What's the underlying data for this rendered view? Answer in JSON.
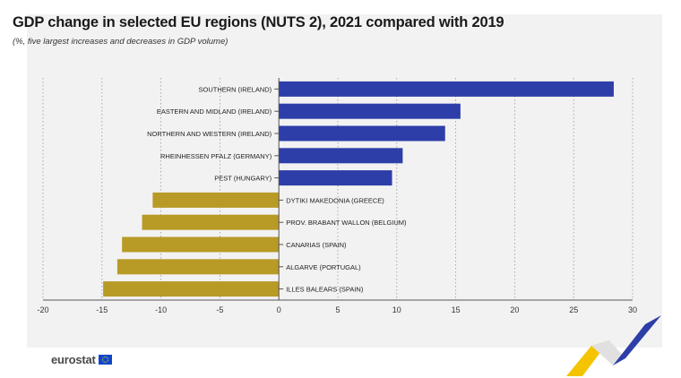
{
  "header": {
    "title": "GDP change in selected EU regions (NUTS 2), 2021 compared with 2019",
    "subtitle": "(%, five largest increases and decreases in GDP volume)"
  },
  "footer": {
    "logo_text": "eurostat"
  },
  "colors": {
    "increase": "#2e3ea8",
    "decrease": "#b89a26",
    "grid": "#9a9a9a"
  },
  "chart_data": {
    "type": "bar",
    "orientation": "horizontal",
    "title": "GDP change in selected EU regions (NUTS 2), 2021 compared with 2019",
    "subtitle": "(%, five largest increases and decreases in GDP volume)",
    "categories": [
      "SOUTHERN (IRELAND)",
      "EASTERN AND MIDLAND (IRELAND)",
      "NORTHERN AND WESTERN (IRELAND)",
      "RHEINHESSEN PFALZ (GERMANY)",
      "PEST (HUNGARY)",
      "DYTIKI MAKEDONIA (GREECE)",
      "PROV. BRABANT WALLON (BELGIUM)",
      "CANARIAS (SPAIN)",
      "ALGARVE (PORTUGAL)",
      "ILLES BALEARS (SPAIN)"
    ],
    "values": [
      28.4,
      15.4,
      14.1,
      10.5,
      9.6,
      -10.7,
      -11.6,
      -13.3,
      -13.7,
      -14.9
    ],
    "xlim": [
      -20,
      30
    ],
    "xticks": [
      -20,
      -15,
      -10,
      -5,
      0,
      5,
      10,
      15,
      20,
      25,
      30
    ],
    "grid": "vertical dotted",
    "xlabel": "",
    "ylabel": ""
  }
}
